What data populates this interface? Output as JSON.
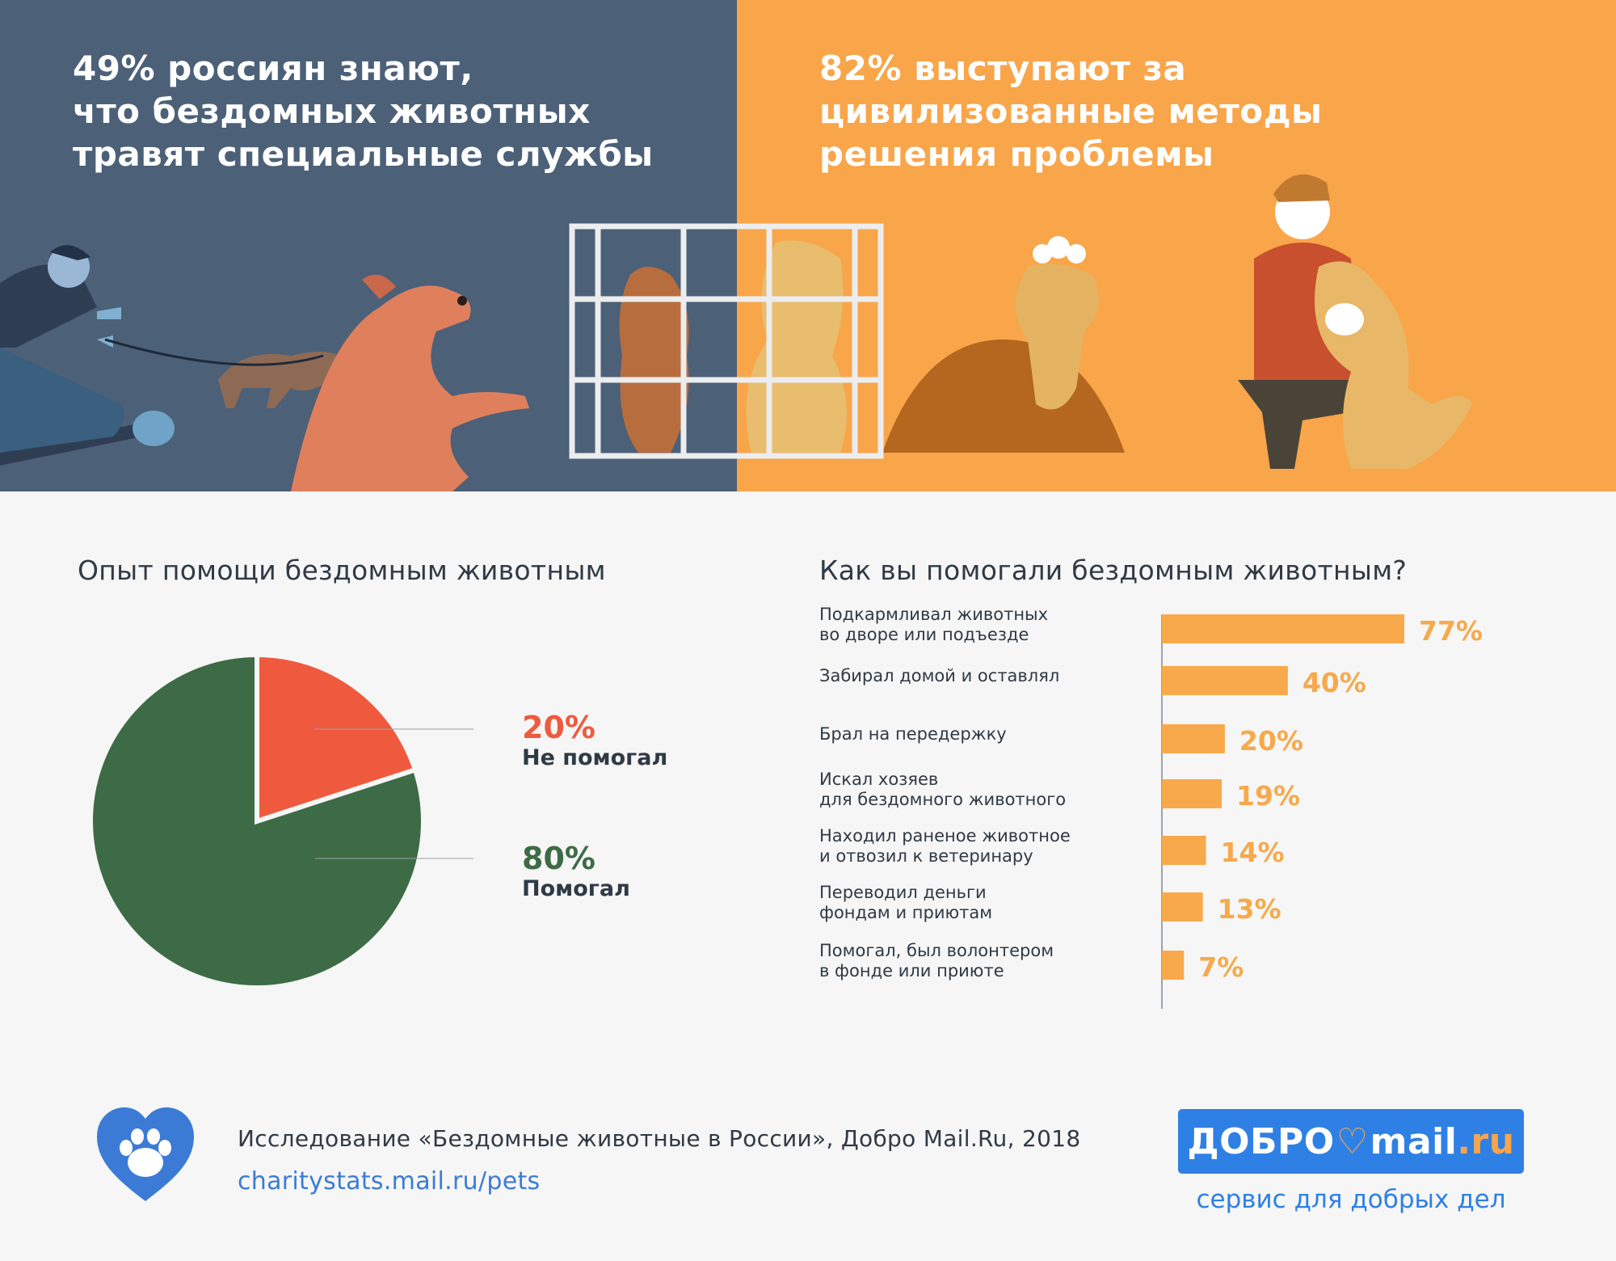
{
  "hero": {
    "left_title": "49% россиян знают,\nчто бездомных животных\nтравят специальные службы",
    "right_title": "82% выступают за\nцивилизованные методы\nрешения проблемы"
  },
  "pie_section": {
    "title": "Опыт помощи бездомным животным"
  },
  "bar_section": {
    "title": "Как вы помогали бездомным животным?"
  },
  "colors": {
    "hero_left_bg": "#4c6078",
    "hero_right_bg": "#f9a54a",
    "pie_not_helped": "#ef5a3e",
    "pie_helped": "#3d6b45",
    "bar": "#f7a94b",
    "brand_blue": "#2f80e4"
  },
  "chart_data": [
    {
      "type": "pie",
      "title": "Опыт помощи бездомным животным",
      "slices": [
        {
          "value": 20,
          "pct_label": "20%",
          "label": "Не помогал",
          "color": "#ef5a3e"
        },
        {
          "value": 80,
          "pct_label": "80%",
          "label": "Помогал",
          "color": "#3d6b45"
        }
      ]
    },
    {
      "type": "bar",
      "orientation": "horizontal",
      "title": "Как вы помогали бездомным животным?",
      "categories": [
        "Подкармливал животных\nво дворе или подъезде",
        "Забирал домой и оставлял",
        "Брал на передержку",
        "Искал хозяев\nдля бездомного животного",
        "Находил раненое животное\nи отвозил к ветеринару",
        "Переводил деньги\nфондам и приютам",
        "Помогал, был волонтером\nв фонде или приюте"
      ],
      "values": [
        77,
        40,
        20,
        19,
        14,
        13,
        7
      ],
      "value_labels": [
        "77%",
        "40%",
        "20%",
        "19%",
        "14%",
        "13%",
        "7%"
      ]
    }
  ],
  "footer": {
    "study": "Исследование «Бездомные животные в России», Добро Mail.Ru, 2018",
    "link": "charitystats.mail.ru/pets",
    "logo_icon": "heart-paw-icon"
  },
  "brand": {
    "part1": "ДОБРО",
    "heart": "♡",
    "part2": "mail",
    "part3": ".ru",
    "tagline": "сервис для добрых дел"
  }
}
